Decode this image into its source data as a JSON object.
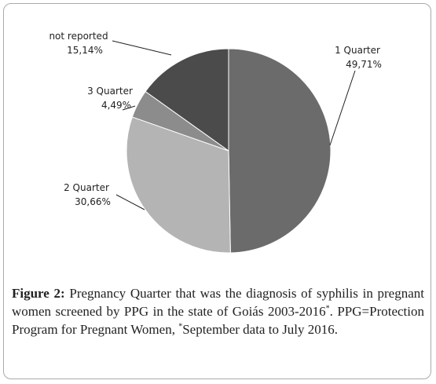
{
  "chart_data": {
    "type": "pie",
    "categories": [
      "1 Quarter",
      "2 Quarter",
      "3 Quarter",
      "not reported"
    ],
    "values": [
      49.71,
      30.66,
      4.49,
      15.14
    ],
    "value_labels": [
      "49,71%",
      "30,66%",
      "4,49%",
      "15,14%"
    ],
    "colors": [
      "#6b6b6b",
      "#b4b4b4",
      "#8c8c8c",
      "#4b4b4b"
    ]
  },
  "caption": {
    "label": "Figure 2:",
    "text1": " Pregnancy Quarter that was the diagnosis of syphilis in pregnant women screened by PPG in the state of Goiás 2003-2016",
    "sup1": "*",
    "text2": ". PPG=Protection Program for Pregnant Women, ",
    "sup2": "*",
    "text3": "September data to July 2016."
  }
}
